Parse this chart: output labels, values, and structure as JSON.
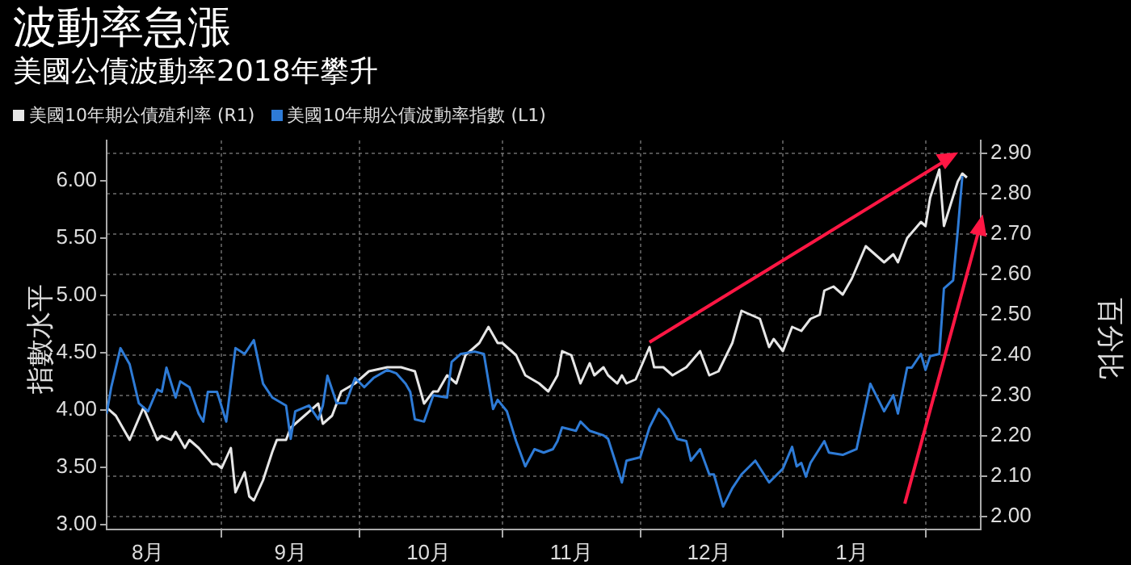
{
  "chart_data": {
    "type": "line",
    "title": "波動率急漲",
    "subtitle": "美國公債波動率2018年攀升",
    "ylabel": "指數水平",
    "y2label": "百分比",
    "legend": "top",
    "grid": true,
    "xlim": [
      "2017-08-07",
      "2018-02-13"
    ],
    "xticks": [
      {
        "value": "2017-08-16",
        "label": "8月"
      },
      {
        "value": "2017-09-01",
        "label": null
      },
      {
        "value": "2017-09-16",
        "label": "9月"
      },
      {
        "value": "2017-10-01",
        "label": null
      },
      {
        "value": "2017-10-16",
        "label": "10月"
      },
      {
        "value": "2017-11-01",
        "label": null
      },
      {
        "value": "2017-11-16",
        "label": "11月"
      },
      {
        "value": "2017-12-01",
        "label": null
      },
      {
        "value": "2017-12-16",
        "label": "12月"
      },
      {
        "value": "2018-01-01",
        "label": null
      },
      {
        "value": "2018-01-16",
        "label": "1月"
      },
      {
        "value": "2018-02-01",
        "label": null
      }
    ],
    "ylim": [
      2.96,
      6.35
    ],
    "yticks": [
      {
        "value": 3,
        "label": "3.00"
      },
      {
        "value": 3.5,
        "label": "3.50"
      },
      {
        "value": 4,
        "label": "4.00"
      },
      {
        "value": 4.5,
        "label": "4.50"
      },
      {
        "value": 5,
        "label": "5.00"
      },
      {
        "value": 5.5,
        "label": "5.50"
      },
      {
        "value": 6,
        "label": "6.00"
      }
    ],
    "y2lim": [
      1.968,
      2.932
    ],
    "y2ticks": [
      {
        "value": 2,
        "label": "2.00"
      },
      {
        "value": 2.1,
        "label": "2.10"
      },
      {
        "value": 2.2,
        "label": "2.20"
      },
      {
        "value": 2.3,
        "label": "2.30"
      },
      {
        "value": 2.4,
        "label": "2.40"
      },
      {
        "value": 2.5,
        "label": "2.50"
      },
      {
        "value": 2.6,
        "label": "2.60"
      },
      {
        "value": 2.7,
        "label": "2.70"
      },
      {
        "value": 2.8,
        "label": "2.80"
      },
      {
        "value": 2.9,
        "label": "2.90"
      }
    ],
    "series": [
      {
        "name": "美國10年期公債殖利率 (R1)",
        "color": "#e6e6e6",
        "axis": "y2",
        "x": [
          "2017-08-07",
          "2017-08-09",
          "2017-08-11",
          "2017-08-12",
          "2017-08-15",
          "2017-08-18",
          "2017-08-19",
          "2017-08-21",
          "2017-08-22",
          "2017-08-24",
          "2017-08-25",
          "2017-08-27",
          "2017-08-30",
          "2017-08-31",
          "2017-09-01",
          "2017-09-03",
          "2017-09-04",
          "2017-09-06",
          "2017-09-07",
          "2017-09-08",
          "2017-09-10",
          "2017-09-12",
          "2017-09-13",
          "2017-09-15",
          "2017-09-16",
          "2017-09-19",
          "2017-09-22",
          "2017-09-23",
          "2017-09-25",
          "2017-09-27",
          "2017-09-30",
          "2017-10-03",
          "2017-10-07",
          "2017-10-10",
          "2017-10-13",
          "2017-10-15",
          "2017-10-17",
          "2017-10-18",
          "2017-10-20",
          "2017-10-22",
          "2017-10-24",
          "2017-10-27",
          "2017-10-29",
          "2017-10-31",
          "2017-11-01",
          "2017-11-04",
          "2017-11-06",
          "2017-11-09",
          "2017-11-11",
          "2017-11-13",
          "2017-11-14",
          "2017-11-16",
          "2017-11-18",
          "2017-11-20",
          "2017-11-21",
          "2017-11-23",
          "2017-11-24",
          "2017-11-26",
          "2017-11-27",
          "2017-11-28",
          "2017-11-30",
          "2017-12-03",
          "2017-12-04",
          "2017-12-06",
          "2017-12-08",
          "2017-12-11",
          "2017-12-14",
          "2017-12-16",
          "2017-12-18",
          "2017-12-21",
          "2017-12-23",
          "2017-12-27",
          "2017-12-29",
          "2017-12-30",
          "2018-01-01",
          "2018-01-03",
          "2018-01-05",
          "2018-01-07",
          "2018-01-09",
          "2018-01-10",
          "2018-01-12",
          "2018-01-14",
          "2018-01-16",
          "2018-01-19",
          "2018-01-23",
          "2018-01-25",
          "2018-01-26",
          "2018-01-28",
          "2018-01-31",
          "2018-02-01",
          "2018-02-02",
          "2018-02-04",
          "2018-02-05",
          "2018-02-08",
          "2018-02-09",
          "2018-02-10"
        ],
        "values": [
          2.27,
          2.25,
          2.21,
          2.19,
          2.27,
          2.19,
          2.2,
          2.19,
          2.21,
          2.17,
          2.19,
          2.17,
          2.13,
          2.13,
          2.12,
          2.17,
          2.06,
          2.11,
          2.05,
          2.04,
          2.09,
          2.16,
          2.19,
          2.19,
          2.22,
          2.25,
          2.28,
          2.23,
          2.25,
          2.31,
          2.33,
          2.36,
          2.37,
          2.37,
          2.36,
          2.28,
          2.31,
          2.31,
          2.35,
          2.33,
          2.4,
          2.43,
          2.47,
          2.43,
          2.43,
          2.4,
          2.35,
          2.33,
          2.31,
          2.35,
          2.41,
          2.4,
          2.33,
          2.38,
          2.35,
          2.37,
          2.35,
          2.33,
          2.35,
          2.33,
          2.34,
          2.42,
          2.37,
          2.37,
          2.35,
          2.37,
          2.41,
          2.35,
          2.36,
          2.43,
          2.51,
          2.49,
          2.42,
          2.44,
          2.41,
          2.47,
          2.46,
          2.49,
          2.5,
          2.56,
          2.57,
          2.55,
          2.59,
          2.67,
          2.63,
          2.65,
          2.63,
          2.69,
          2.73,
          2.72,
          2.79,
          2.86,
          2.72,
          2.83,
          2.85,
          2.84
        ]
      },
      {
        "name": "美國10年期公債波動率指數 (L1)",
        "color": "#2e7bd6",
        "axis": "y",
        "x": [
          "2017-08-07",
          "2017-08-08",
          "2017-08-10",
          "2017-08-12",
          "2017-08-14",
          "2017-08-16",
          "2017-08-18",
          "2017-08-19",
          "2017-08-20",
          "2017-08-22",
          "2017-08-23",
          "2017-08-25",
          "2017-08-27",
          "2017-08-28",
          "2017-08-29",
          "2017-08-31",
          "2017-09-02",
          "2017-09-04",
          "2017-09-06",
          "2017-09-08",
          "2017-09-10",
          "2017-09-12",
          "2017-09-15",
          "2017-09-16",
          "2017-09-17",
          "2017-09-20",
          "2017-09-22",
          "2017-09-23",
          "2017-09-24",
          "2017-09-26",
          "2017-09-28",
          "2017-09-30",
          "2017-10-02",
          "2017-10-04",
          "2017-10-07",
          "2017-10-09",
          "2017-10-11",
          "2017-10-12",
          "2017-10-13",
          "2017-10-15",
          "2017-10-17",
          "2017-10-20",
          "2017-10-21",
          "2017-10-23",
          "2017-10-26",
          "2017-10-28",
          "2017-10-30",
          "2017-10-31",
          "2017-11-02",
          "2017-11-04",
          "2017-11-06",
          "2017-11-08",
          "2017-11-10",
          "2017-11-12",
          "2017-11-13",
          "2017-11-14",
          "2017-11-17",
          "2017-11-18",
          "2017-11-20",
          "2017-11-23",
          "2017-11-24",
          "2017-11-27",
          "2017-11-28",
          "2017-12-01",
          "2017-12-03",
          "2017-12-05",
          "2017-12-07",
          "2017-12-09",
          "2017-12-11",
          "2017-12-12",
          "2017-12-14",
          "2017-12-16",
          "2017-12-17",
          "2017-12-19",
          "2017-12-21",
          "2017-12-23",
          "2017-12-26",
          "2017-12-29",
          "2018-01-01",
          "2018-01-03",
          "2018-01-04",
          "2018-01-05",
          "2018-01-06",
          "2018-01-07",
          "2018-01-10",
          "2018-01-11",
          "2018-01-14",
          "2018-01-17",
          "2018-01-20",
          "2018-01-23",
          "2018-01-25",
          "2018-01-26",
          "2018-01-28",
          "2018-01-29",
          "2018-01-31",
          "2018-02-01",
          "2018-02-02",
          "2018-02-04",
          "2018-02-05",
          "2018-02-07",
          "2018-02-08",
          "2018-02-09"
        ],
        "values": [
          3.97,
          4.2,
          4.54,
          4.4,
          4.06,
          3.99,
          4.18,
          4.16,
          4.37,
          4.11,
          4.25,
          4.2,
          3.97,
          3.9,
          4.16,
          4.16,
          3.9,
          4.54,
          4.49,
          4.61,
          4.23,
          4.11,
          4.04,
          3.75,
          3.99,
          4.04,
          3.92,
          4.04,
          4.3,
          4.06,
          4.06,
          4.28,
          4.2,
          4.28,
          4.35,
          4.32,
          4.23,
          4.16,
          3.92,
          3.9,
          4.13,
          4.11,
          4.42,
          4.49,
          4.51,
          4.49,
          4.01,
          4.09,
          3.99,
          3.73,
          3.51,
          3.66,
          3.63,
          3.66,
          3.73,
          3.85,
          3.82,
          3.9,
          3.82,
          3.78,
          3.75,
          3.37,
          3.56,
          3.59,
          3.85,
          4.01,
          3.92,
          3.75,
          3.73,
          3.56,
          3.66,
          3.44,
          3.44,
          3.16,
          3.32,
          3.44,
          3.56,
          3.37,
          3.49,
          3.68,
          3.51,
          3.54,
          3.42,
          3.54,
          3.73,
          3.63,
          3.61,
          3.66,
          4.23,
          3.99,
          4.13,
          3.97,
          4.37,
          4.37,
          4.49,
          4.35,
          4.47,
          4.49,
          5.06,
          5.13,
          5.56,
          6.04
        ]
      }
    ]
  }
}
